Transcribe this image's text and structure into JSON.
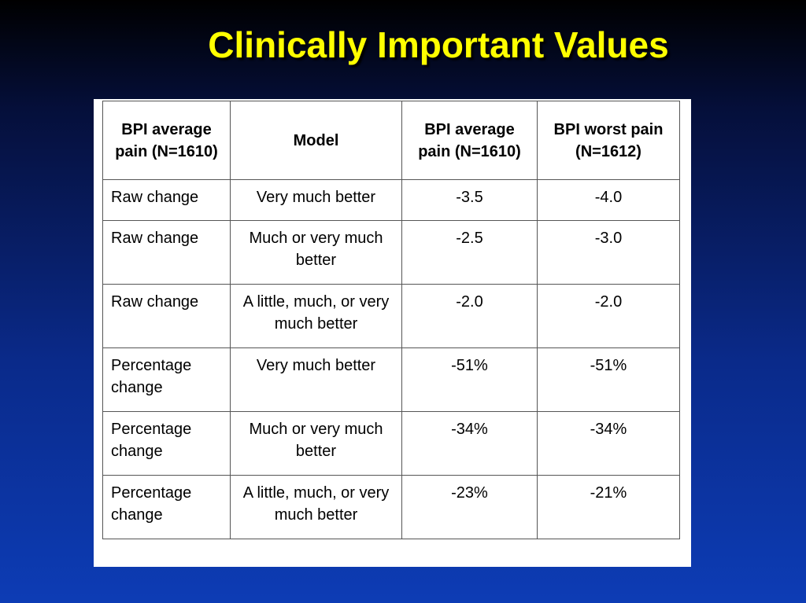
{
  "title": "Clinically Important Values",
  "table": {
    "headers": [
      "BPI average pain (N=1610)",
      "Model",
      "BPI average pain (N=1610)",
      "BPI worst pain (N=1612)"
    ],
    "rows": [
      [
        "Raw change",
        "Very much better",
        "-3.5",
        "-4.0"
      ],
      [
        "Raw change",
        "Much or very much better",
        "-2.5",
        "-3.0"
      ],
      [
        "Raw change",
        "A little, much, or very much better",
        "-2.0",
        "-2.0"
      ],
      [
        "Percentage change",
        "Very much better",
        "-51%",
        "-51%"
      ],
      [
        "Percentage change",
        "Much or very much better",
        "-34%",
        "-34%"
      ],
      [
        "Percentage change",
        "A little, much, or very much better",
        "-23%",
        "-21%"
      ]
    ]
  },
  "colors": {
    "title": "#ffff00",
    "background_top": "#000000",
    "background_bottom": "#0d3cb5",
    "table_background": "#ffffff"
  }
}
